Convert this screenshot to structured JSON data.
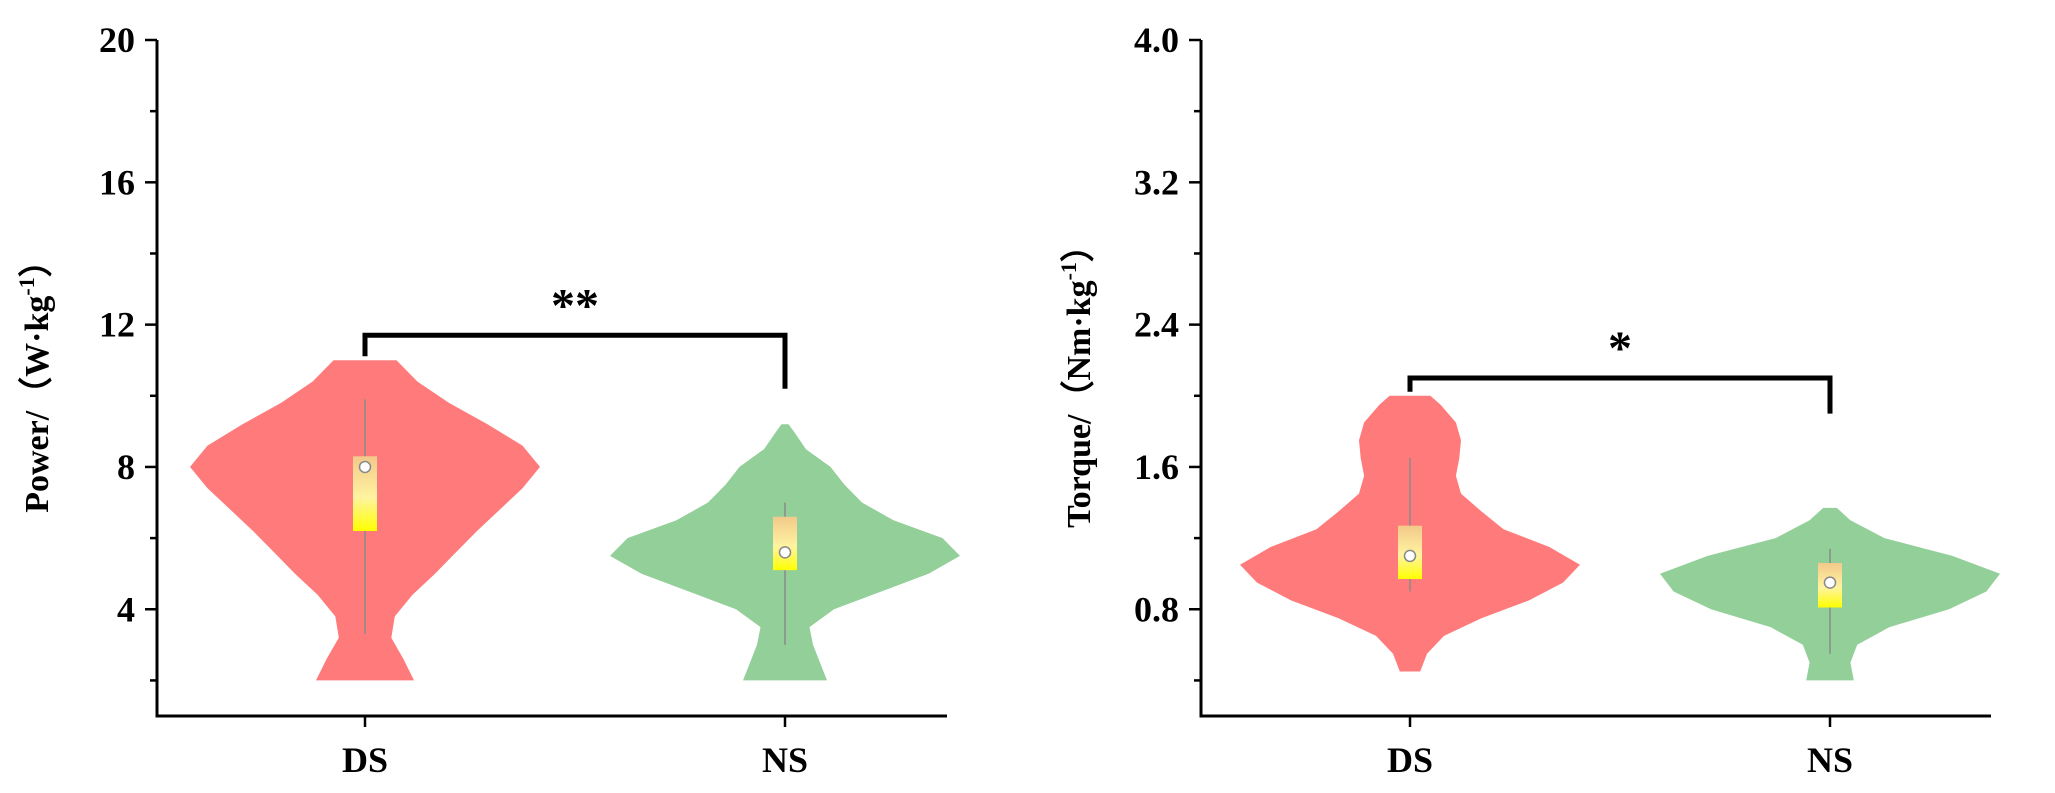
{
  "chart_data": [
    {
      "type": "violin",
      "ylabel": "Power/（W·kg",
      "ylabel_sup": "-1",
      "ylabel_close": "）",
      "ylim": [
        1,
        20
      ],
      "yticks": [
        4,
        8,
        12,
        16,
        20
      ],
      "ytick_labels": [
        "4",
        "8",
        "12",
        "16",
        "20"
      ],
      "minor_step": 2,
      "categories": [
        "DS",
        "NS"
      ],
      "series": [
        {
          "name": "DS",
          "color": "#ff7b7b",
          "min": 2.0,
          "max": 11.0,
          "whisker": [
            3.3,
            9.9
          ],
          "q1": 6.2,
          "q3": 8.3,
          "mean": 8.0,
          "density": [
            [
              2.0,
              0.28
            ],
            [
              2.6,
              0.22
            ],
            [
              3.2,
              0.15
            ],
            [
              3.8,
              0.17
            ],
            [
              4.4,
              0.27
            ],
            [
              5.0,
              0.4
            ],
            [
              5.6,
              0.52
            ],
            [
              6.2,
              0.64
            ],
            [
              6.8,
              0.77
            ],
            [
              7.4,
              0.9
            ],
            [
              8.0,
              1.0
            ],
            [
              8.6,
              0.9
            ],
            [
              9.2,
              0.7
            ],
            [
              9.8,
              0.48
            ],
            [
              10.4,
              0.3
            ],
            [
              11.0,
              0.18
            ]
          ]
        },
        {
          "name": "NS",
          "color": "#93cf99",
          "min": 2.0,
          "max": 9.2,
          "whisker": [
            3.0,
            7.0
          ],
          "q1": 5.1,
          "q3": 6.6,
          "mean": 5.6,
          "density": [
            [
              2.0,
              0.24
            ],
            [
              2.5,
              0.2
            ],
            [
              3.0,
              0.16
            ],
            [
              3.5,
              0.14
            ],
            [
              4.0,
              0.28
            ],
            [
              4.5,
              0.55
            ],
            [
              5.0,
              0.82
            ],
            [
              5.5,
              1.0
            ],
            [
              6.0,
              0.9
            ],
            [
              6.5,
              0.62
            ],
            [
              7.0,
              0.44
            ],
            [
              7.5,
              0.34
            ],
            [
              8.0,
              0.26
            ],
            [
              8.5,
              0.12
            ],
            [
              9.0,
              0.05
            ],
            [
              9.2,
              0.02
            ]
          ]
        }
      ],
      "significance": "**",
      "bracket_y": [
        11.7,
        10.2
      ]
    },
    {
      "type": "violin",
      "ylabel": "Torque/（Nm·kg",
      "ylabel_sup": "-1",
      "ylabel_close": "）",
      "ylim": [
        0.2,
        4.0
      ],
      "yticks": [
        0.8,
        1.6,
        2.4,
        3.2,
        4.0
      ],
      "ytick_labels": [
        "0.8",
        "1.6",
        "2.4",
        "3.2",
        "4.0"
      ],
      "minor_step": 0.4,
      "categories": [
        "DS",
        "NS"
      ],
      "series": [
        {
          "name": "DS",
          "color": "#ff7b7b",
          "min": 0.45,
          "max": 2.0,
          "whisker": [
            0.9,
            1.65
          ],
          "q1": 0.97,
          "q3": 1.27,
          "mean": 1.1,
          "density": [
            [
              0.45,
              0.06
            ],
            [
              0.55,
              0.1
            ],
            [
              0.65,
              0.2
            ],
            [
              0.75,
              0.42
            ],
            [
              0.85,
              0.7
            ],
            [
              0.95,
              0.9
            ],
            [
              1.05,
              1.0
            ],
            [
              1.15,
              0.82
            ],
            [
              1.25,
              0.55
            ],
            [
              1.35,
              0.42
            ],
            [
              1.45,
              0.3
            ],
            [
              1.55,
              0.27
            ],
            [
              1.65,
              0.29
            ],
            [
              1.75,
              0.3
            ],
            [
              1.85,
              0.27
            ],
            [
              1.95,
              0.18
            ],
            [
              2.0,
              0.12
            ]
          ]
        },
        {
          "name": "NS",
          "color": "#93cf99",
          "min": 0.4,
          "max": 1.37,
          "whisker": [
            0.55,
            1.14
          ],
          "q1": 0.81,
          "q3": 1.06,
          "mean": 0.95,
          "density": [
            [
              0.4,
              0.14
            ],
            [
              0.5,
              0.12
            ],
            [
              0.6,
              0.16
            ],
            [
              0.7,
              0.35
            ],
            [
              0.8,
              0.7
            ],
            [
              0.9,
              0.92
            ],
            [
              1.0,
              1.0
            ],
            [
              1.1,
              0.72
            ],
            [
              1.2,
              0.32
            ],
            [
              1.3,
              0.12
            ],
            [
              1.37,
              0.04
            ]
          ]
        }
      ],
      "significance": "*",
      "bracket_y": [
        2.1,
        1.9
      ]
    }
  ]
}
